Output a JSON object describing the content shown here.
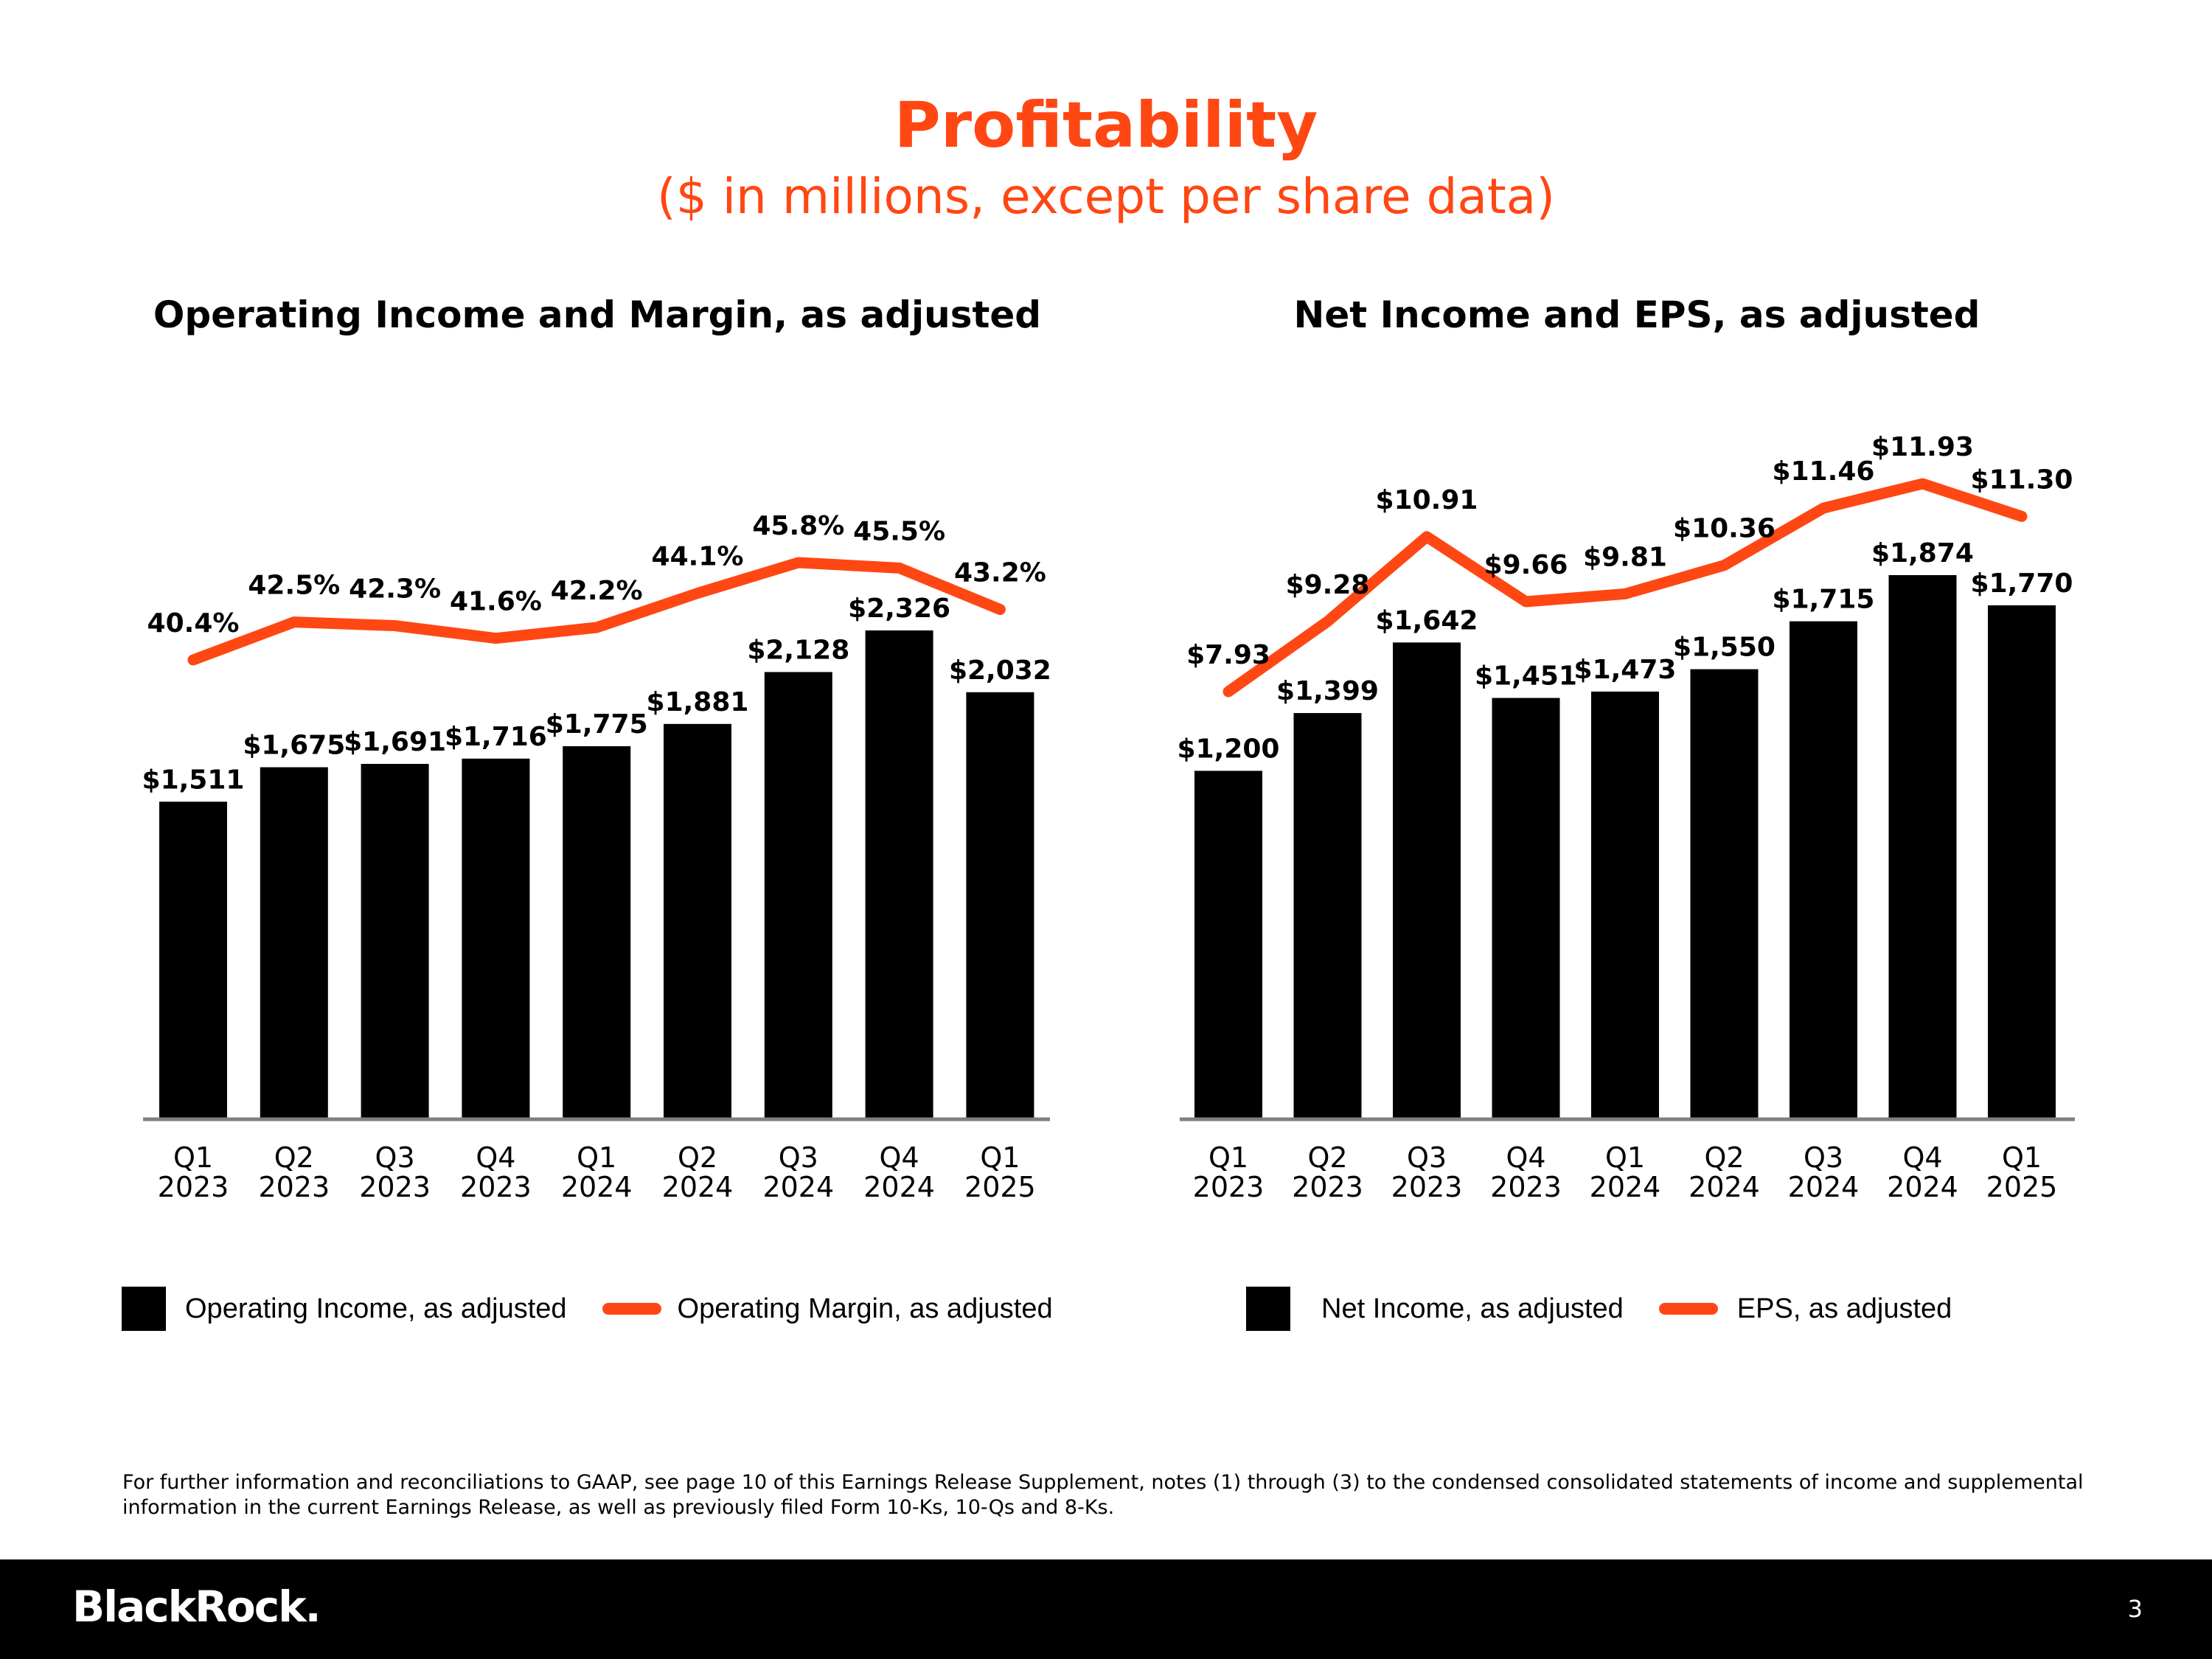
{
  "page": {
    "title": "Profitability",
    "subtitle": "($ in millions, except per share data)",
    "footnote": "For further information and reconciliations to GAAP, see page 10 of this Earnings Release Supplement, notes (1) through (3) to the condensed consolidated statements of income and supplemental information in the current Earnings Release, as well as previously filed Form 10-Ks, 10-Qs and 8-Ks.",
    "logo": "BlackRock.",
    "page_number": "3"
  },
  "colors": {
    "accent": "#ff4713",
    "bar": "#000000",
    "axis": "#808080"
  },
  "chart_data": [
    {
      "type": "bar",
      "title": "Operating Income and Margin, as adjusted",
      "categories": [
        [
          "Q1",
          "2023"
        ],
        [
          "Q2",
          "2023"
        ],
        [
          "Q3",
          "2023"
        ],
        [
          "Q4",
          "2023"
        ],
        [
          "Q1",
          "2024"
        ],
        [
          "Q2",
          "2024"
        ],
        [
          "Q3",
          "2024"
        ],
        [
          "Q4",
          "2024"
        ],
        [
          "Q1",
          "2025"
        ]
      ],
      "series": [
        {
          "name": "Operating Income, as adjusted",
          "kind": "bar",
          "values": [
            1511,
            1675,
            1691,
            1716,
            1775,
            1881,
            2128,
            2326,
            2032
          ],
          "labels": [
            "$1,511",
            "$1,675",
            "$1,691",
            "$1,716",
            "$1,775",
            "$1,881",
            "$2,128",
            "$2,326",
            "$2,032"
          ]
        },
        {
          "name": "Operating Margin, as adjusted",
          "kind": "line",
          "values": [
            40.4,
            42.5,
            42.3,
            41.6,
            42.2,
            44.1,
            45.8,
            45.5,
            43.2
          ],
          "labels": [
            "40.4%",
            "42.5%",
            "42.3%",
            "41.6%",
            "42.2%",
            "44.1%",
            "45.8%",
            "45.5%",
            "43.2%"
          ]
        }
      ],
      "legend": "bottom"
    },
    {
      "type": "bar",
      "title": "Net Income and EPS, as adjusted",
      "categories": [
        [
          "Q1",
          "2023"
        ],
        [
          "Q2",
          "2023"
        ],
        [
          "Q3",
          "2023"
        ],
        [
          "Q4",
          "2023"
        ],
        [
          "Q1",
          "2024"
        ],
        [
          "Q2",
          "2024"
        ],
        [
          "Q3",
          "2024"
        ],
        [
          "Q4",
          "2024"
        ],
        [
          "Q1",
          "2025"
        ]
      ],
      "series": [
        {
          "name": "Net Income, as adjusted",
          "kind": "bar",
          "values": [
            1200,
            1399,
            1642,
            1451,
            1473,
            1550,
            1715,
            1874,
            1770
          ],
          "labels": [
            "$1,200",
            "$1,399",
            "$1,642",
            "$1,451",
            "$1,473",
            "$1,550",
            "$1,715",
            "$1,874",
            "$1,770"
          ]
        },
        {
          "name": "EPS, as adjusted",
          "kind": "line",
          "values": [
            7.93,
            9.28,
            10.91,
            9.66,
            9.81,
            10.36,
            11.46,
            11.93,
            11.3
          ],
          "labels": [
            "$7.93",
            "$9.28",
            "$10.91",
            "$9.66",
            "$9.81",
            "$10.36",
            "$11.46",
            "$11.93",
            "$11.30"
          ]
        }
      ],
      "legend": "bottom"
    }
  ]
}
